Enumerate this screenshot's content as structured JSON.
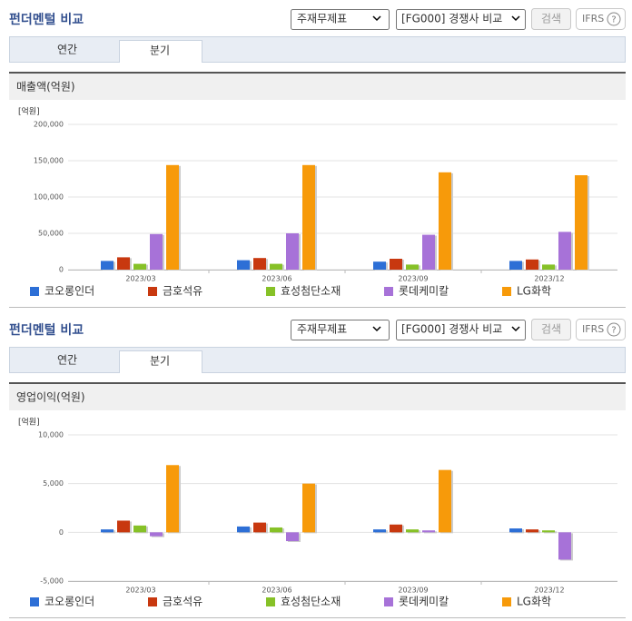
{
  "panels": [
    {
      "title": "펀더멘털 비교",
      "select1": "주재무제표",
      "select2": "[FG000] 경쟁사 비교",
      "button": "검색",
      "ifrs": "IFRS",
      "help": "?",
      "tabs": [
        "연간",
        "분기"
      ]
    },
    {
      "title": "펀더멘털 비교",
      "select1": "주재무제표",
      "select2": "[FG000] 경쟁사 비교",
      "button": "검색",
      "ifrs": "IFRS",
      "help": "?",
      "tabs": [
        "연간",
        "분기"
      ]
    }
  ],
  "chart_data": [
    {
      "type": "bar",
      "title": "매출액(억원)",
      "unit": "[억원]",
      "categories": [
        "2023/03",
        "2023/06",
        "2023/09",
        "2023/12"
      ],
      "ylim": [
        0,
        200000
      ],
      "yticks": [
        0,
        {
          "value": 50000,
          "label": "50,000"
        },
        {
          "value": 100000,
          "label": "100,000"
        },
        {
          "value": 150000,
          "label": "150,000"
        },
        {
          "value": 200000,
          "label": "200,000"
        }
      ],
      "grid": true,
      "series": [
        {
          "name": "코오롱인더",
          "color": "#2d6fd6",
          "values": [
            12000,
            13000,
            11000,
            12000
          ]
        },
        {
          "name": "금호석유",
          "color": "#c8380f",
          "values": [
            17000,
            16000,
            15000,
            14000
          ]
        },
        {
          "name": "효성첨단소재",
          "color": "#86c127",
          "values": [
            8000,
            8000,
            7000,
            7000
          ]
        },
        {
          "name": "롯데케미칼",
          "color": "#a772d8",
          "values": [
            49000,
            50000,
            48000,
            52000
          ]
        },
        {
          "name": "LG화학",
          "color": "#f79a0a",
          "values": [
            144000,
            144000,
            134000,
            130000
          ]
        }
      ]
    },
    {
      "type": "bar",
      "title": "영업이익(억원)",
      "unit": "[억원]",
      "categories": [
        "2023/03",
        "2023/06",
        "2023/09",
        "2023/12"
      ],
      "ylim": [
        -5000,
        10000
      ],
      "yticks": [
        {
          "value": -5000,
          "label": "-5,000"
        },
        0,
        {
          "value": 5000,
          "label": "5,000"
        },
        {
          "value": 10000,
          "label": "10,000"
        }
      ],
      "grid": true,
      "series": [
        {
          "name": "코오롱인더",
          "color": "#2d6fd6",
          "values": [
            300,
            600,
            300,
            400
          ]
        },
        {
          "name": "금호석유",
          "color": "#c8380f",
          "values": [
            1200,
            1000,
            800,
            300
          ]
        },
        {
          "name": "효성첨단소재",
          "color": "#86c127",
          "values": [
            700,
            500,
            300,
            200
          ]
        },
        {
          "name": "롯데케미칼",
          "color": "#a772d8",
          "values": [
            -400,
            -900,
            200,
            -2800
          ]
        },
        {
          "name": "LG화학",
          "color": "#f79a0a",
          "values": [
            6900,
            5000,
            6400,
            null
          ]
        }
      ]
    }
  ]
}
